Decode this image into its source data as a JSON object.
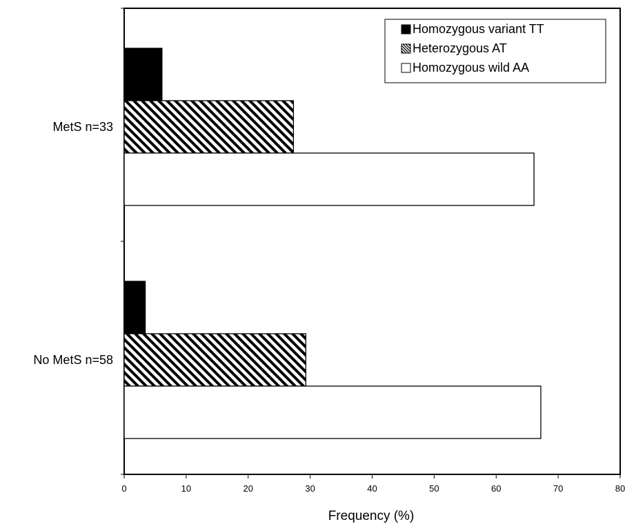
{
  "chart_data": {
    "type": "bar",
    "orientation": "horizontal",
    "title": "",
    "xlabel": "Frequency (%)",
    "ylabel": "",
    "xlim": [
      0,
      80
    ],
    "xticks": [
      0,
      10,
      20,
      30,
      40,
      50,
      60,
      70,
      80
    ],
    "grid": false,
    "legend_position": "top-right",
    "categories": [
      "MetS n=33",
      "No MetS n=58"
    ],
    "series": [
      {
        "name": "Homozygous variant TT",
        "values": [
          6.1,
          3.4
        ],
        "fill": "solid-black"
      },
      {
        "name": "Heterozygous AT",
        "values": [
          27.3,
          29.3
        ],
        "fill": "diagonal-hatch"
      },
      {
        "name": "Homozygous wild AA",
        "values": [
          66.1,
          67.2
        ],
        "fill": "white"
      }
    ],
    "colors": {
      "bar_stroke": "#000000",
      "solid": "#000000",
      "hatch": "#000000",
      "empty": "#ffffff"
    }
  }
}
